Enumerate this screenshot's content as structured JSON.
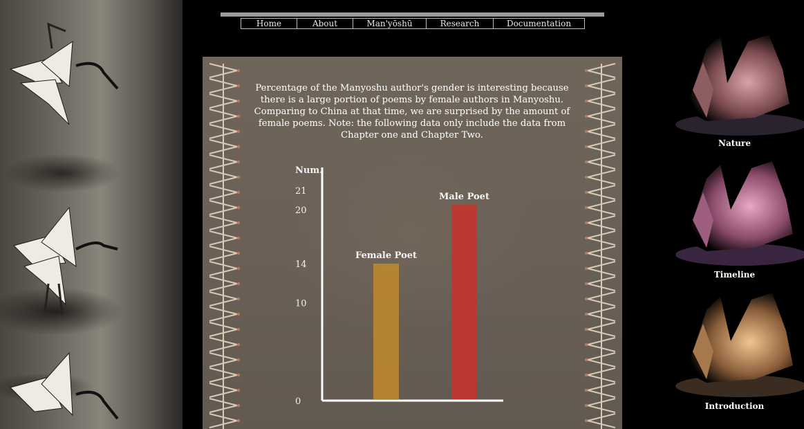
{
  "nav": {
    "items": [
      "Home",
      "About",
      "Man'yōshū",
      "Research",
      "Documentation"
    ]
  },
  "intro": {
    "text": "Percentage of the Manyoshu author's gender is interesting because there is a large portion of poems by female authors in Manyoshu. Comparing to China at that time, we are surprised by the amount of female poems. Note: the following data only include the data from Chapter one and Chapter Two."
  },
  "chart_data": {
    "type": "bar",
    "categories": [
      "Female Poet",
      "Male Poet"
    ],
    "values": [
      14,
      20
    ],
    "ylabel": "Num.",
    "yticks": [
      0,
      10,
      14,
      20,
      21
    ],
    "ylim": [
      0,
      21
    ],
    "colors": [
      "#c08a2c",
      "#c8322a"
    ],
    "grid": false,
    "legend": "none"
  },
  "sidebar": {
    "thumbs": [
      {
        "label": "Nature",
        "tint": "#c08a8a"
      },
      {
        "label": "Timeline",
        "tint": "#c88aa8"
      },
      {
        "label": "Introduction",
        "tint": "#d2a070"
      }
    ]
  },
  "colors": {
    "background": "#000000",
    "panel": "#6a6057",
    "text": "#ffffff"
  }
}
